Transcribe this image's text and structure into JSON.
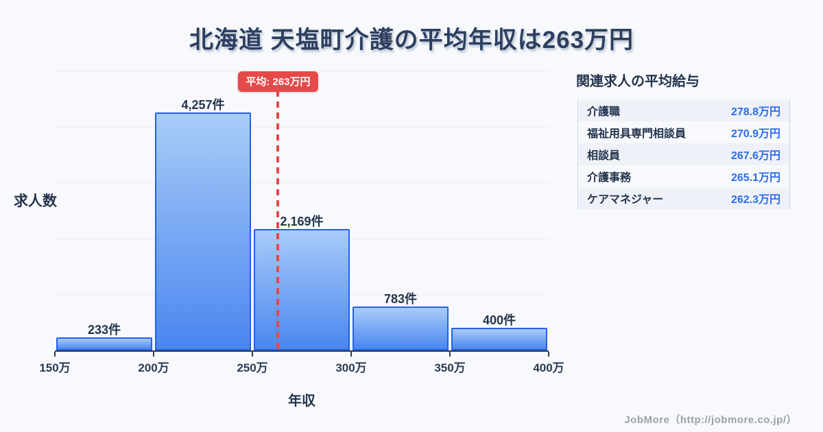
{
  "title": "北海道 天塩町介護の平均年収は263万円",
  "chart_data": {
    "type": "bar",
    "title": "北海道 天塩町介護の平均年収は263万円",
    "xlabel": "年収",
    "ylabel": "求人数",
    "unit_suffix": "件",
    "x_tick_labels": [
      "150万",
      "200万",
      "250万",
      "300万",
      "350万",
      "400万"
    ],
    "x_range_man_yen": [
      150,
      400
    ],
    "bin_width_man_yen": 50,
    "categories": [
      "150万-200万",
      "200万-250万",
      "250万-300万",
      "300万-350万",
      "350万-400万"
    ],
    "values": [
      233,
      4257,
      2169,
      783,
      400
    ],
    "bar_labels": [
      "233件",
      "4,257件",
      "2,169件",
      "783件",
      "400件"
    ],
    "ylim": [
      0,
      5000
    ],
    "grid": true,
    "gridline_interval": 1000,
    "mean": {
      "value_man_yen": 263,
      "badge_label": "平均: 263万円",
      "line_color": "#e64949"
    }
  },
  "side_panel": {
    "title": "関連求人の平均給与",
    "rows": [
      {
        "label": "介護職",
        "value": "278.8万円"
      },
      {
        "label": "福祉用具専門相談員",
        "value": "270.9万円"
      },
      {
        "label": "相談員",
        "value": "267.6万円"
      },
      {
        "label": "介護事務",
        "value": "265.1万円"
      },
      {
        "label": "ケアマネジャー",
        "value": "262.3万円"
      }
    ]
  },
  "footer": {
    "credit": "JobMore（http://jobmore.co.jp/）"
  },
  "colors": {
    "background": "#f7f9fc",
    "title_text": "#2c3f60",
    "dark_text": "#24344d",
    "bar_gradient_top": "#a8ccf8",
    "bar_gradient_bottom": "#4b86f0",
    "bar_border": "#2361e8",
    "mean_red": "#e64949",
    "value_blue": "#2a6de9",
    "gridline": "#e8ecf3",
    "table_stripe": "#eef1f8",
    "table_border": "#c9d5e4",
    "footer_gray": "#9aa0a9"
  }
}
